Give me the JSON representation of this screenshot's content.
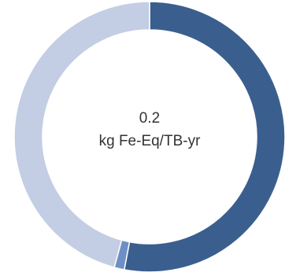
{
  "chart_data": {
    "type": "pie",
    "style": "donut",
    "center_value": "0.2",
    "center_unit": "kg Fe-Eq/TB-yr",
    "slices": [
      {
        "value": 0.53,
        "color": "#3a5f8f"
      },
      {
        "value": 0.012,
        "color": "#6d8fc4"
      },
      {
        "value": 0.458,
        "color": "#c3cde3"
      }
    ],
    "start": "top",
    "direction": "clockwise",
    "legend": "none"
  }
}
